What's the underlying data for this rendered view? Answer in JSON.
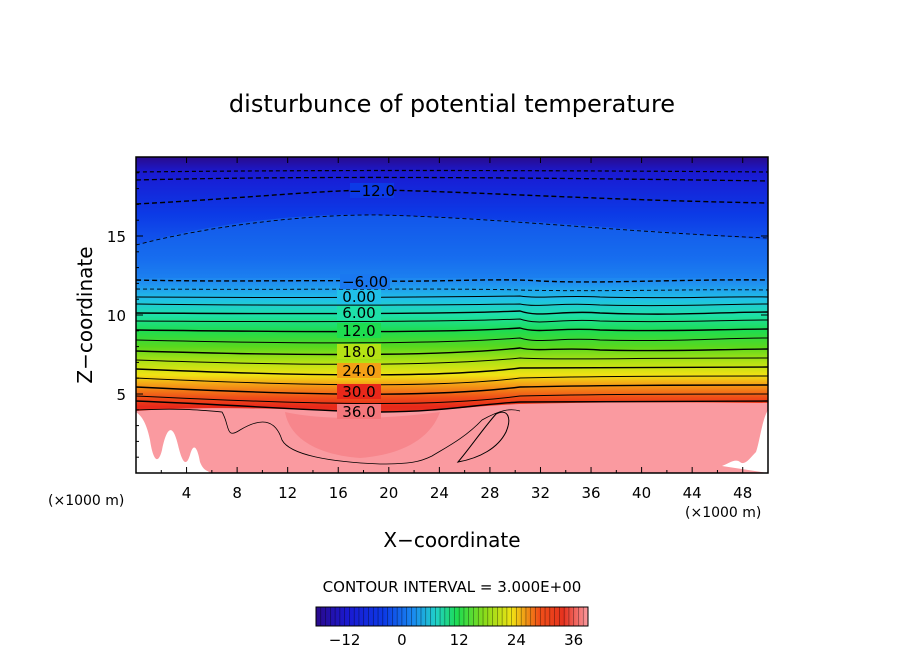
{
  "chart_data": {
    "type": "contour",
    "title": "disturbunce of potential temperature",
    "xlabel": "X−coordinate",
    "ylabel": "Z−coordinate",
    "x_unit_left": "(×1000 m)",
    "x_unit_right": "(×1000 m)",
    "xlim": [
      0,
      50
    ],
    "ylim": [
      0,
      20
    ],
    "x_ticks": [
      4,
      8,
      12,
      16,
      20,
      24,
      28,
      32,
      36,
      40,
      44,
      48
    ],
    "x_tick_labels": [
      "4",
      "8",
      "12",
      "16",
      "20",
      "24",
      "28",
      "32",
      "36",
      "40",
      "44",
      "48"
    ],
    "y_ticks": [
      5,
      10,
      15
    ],
    "y_tick_labels": [
      "5",
      "10",
      "15"
    ],
    "contour_interval_text": "CONTOUR INTERVAL = 3.000E+00",
    "contour_interval": 3,
    "contour_labels": [
      {
        "value": -12,
        "text": "−12.0",
        "x": 19.5,
        "z": 17.9
      },
      {
        "value": -6,
        "text": "−6.00",
        "x": 18.8,
        "z": 12.1
      },
      {
        "value": 0,
        "text": "0.00",
        "x": 17.7,
        "z": 11.1
      },
      {
        "value": 6,
        "text": "6.00",
        "x": 17.7,
        "z": 10.1
      },
      {
        "value": 12,
        "text": "12.0",
        "x": 17.6,
        "z": 9.0
      },
      {
        "value": 18,
        "text": "18.0",
        "x": 17.6,
        "z": 7.6
      },
      {
        "value": 24,
        "text": "24.0",
        "x": 17.6,
        "z": 6.4
      },
      {
        "value": 30,
        "text": "30.0",
        "x": 17.6,
        "z": 5.1
      },
      {
        "value": 36,
        "text": "36.0",
        "x": 17.6,
        "z": 3.8
      }
    ],
    "colorbar": {
      "min": -18,
      "max": 39,
      "ticks": [
        -12,
        0,
        12,
        24,
        36
      ],
      "tick_labels": [
        "−12",
        "0",
        "12",
        "24",
        "36"
      ]
    },
    "colors": {
      "coldest": "#2a0a8c",
      "cold": "#0c2ee6",
      "cool": "#1a78f0",
      "neutral": "#20d0c8",
      "mild": "#32d228",
      "warm": "#dce614",
      "hot": "#e6321e",
      "hottest": "#fa9aa0"
    }
  }
}
